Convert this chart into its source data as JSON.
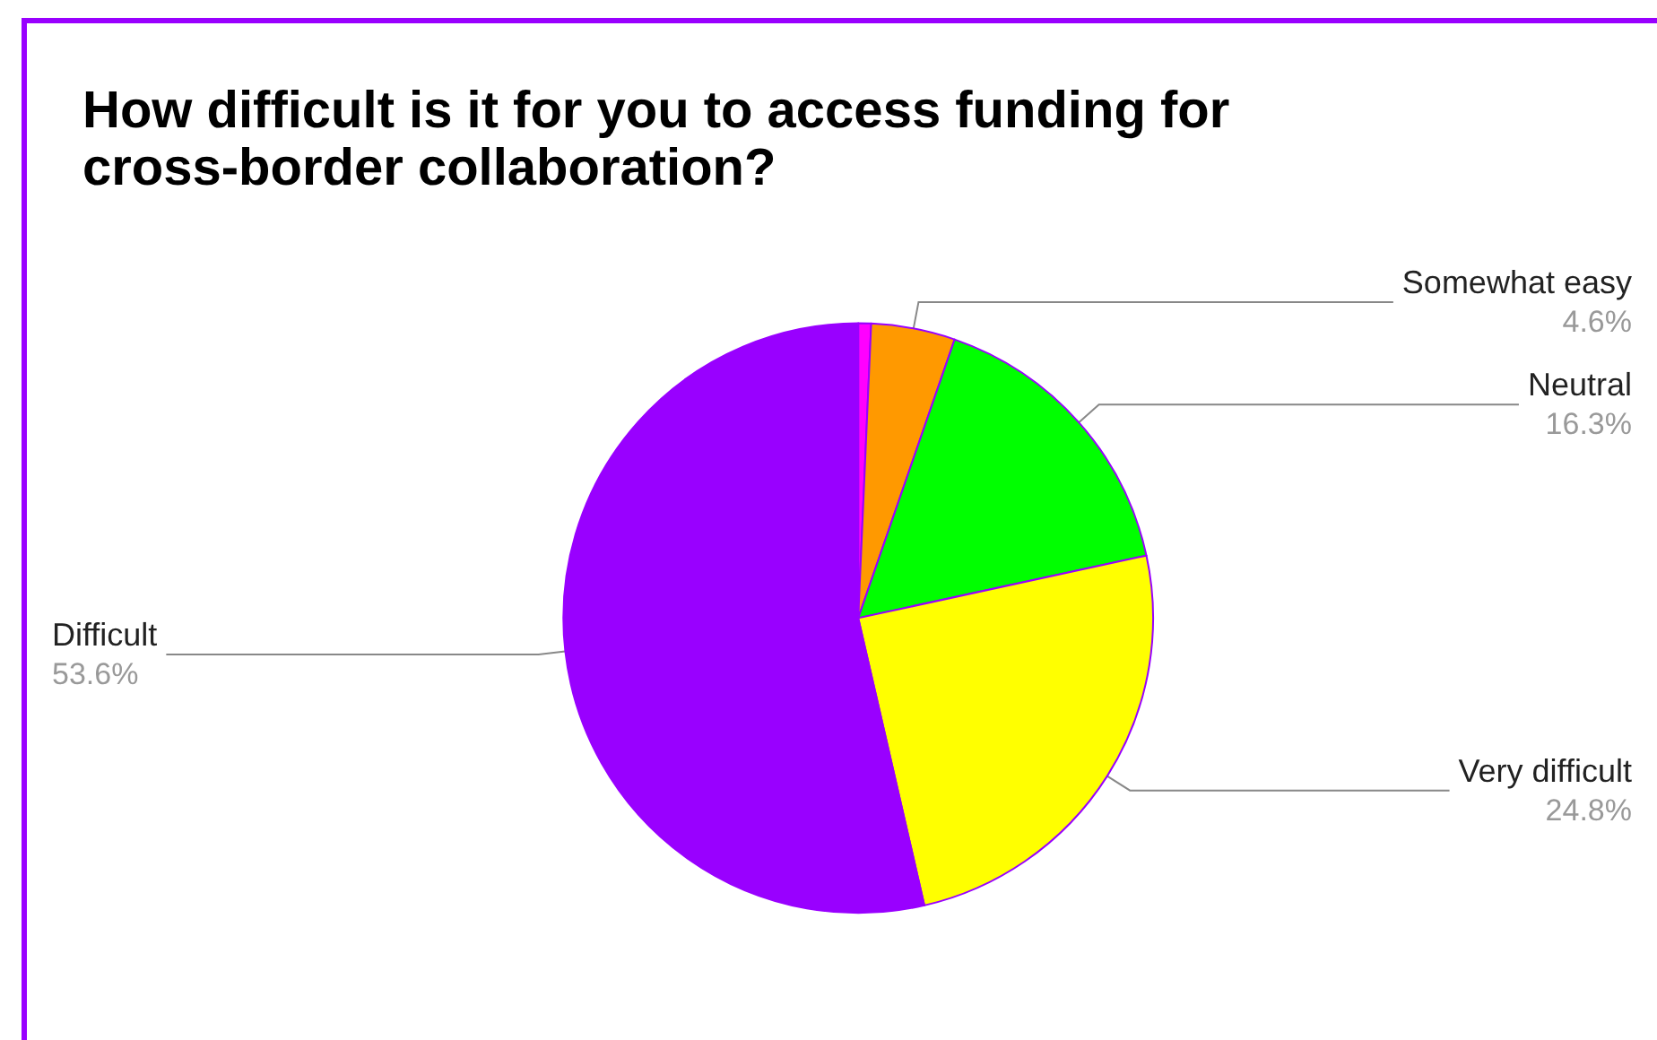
{
  "chart_data": {
    "type": "pie",
    "title": "How difficult is it for you to access funding for cross-border collaboration?",
    "categories": [
      null,
      "Somewhat easy",
      "Neutral",
      "Very difficult",
      "Difficult"
    ],
    "values": [
      0.7,
      4.6,
      16.3,
      24.8,
      53.6
    ],
    "value_labels": [
      null,
      "4.6%",
      "16.3%",
      "24.8%",
      "53.6%"
    ],
    "colors": [
      "#ff00ff",
      "#ff9900",
      "#00ff00",
      "#ffff00",
      "#9900ff"
    ],
    "legend": false
  }
}
